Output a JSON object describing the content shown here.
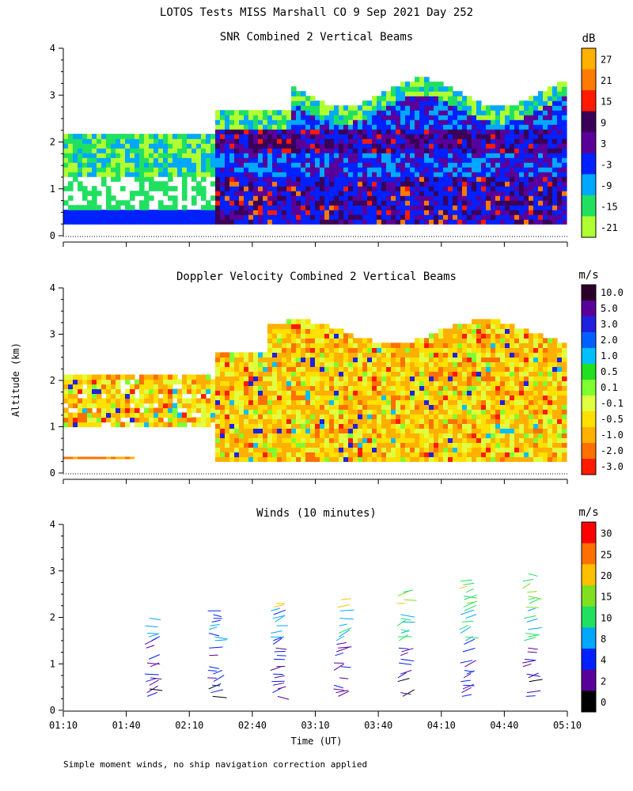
{
  "figure": {
    "title": "LOTOS Tests MISS Marshall CO   9 Sep 2021 Day 252",
    "xlabel": "Time (UT)",
    "ylabel": "Altitude (km)",
    "footnote": "Simple moment winds, no ship navigation correction applied",
    "x_ticks": [
      "01:10",
      "01:40",
      "02:10",
      "02:40",
      "03:10",
      "03:40",
      "04:10",
      "04:40",
      "05:10"
    ]
  },
  "chart_data": [
    {
      "type": "heatmap",
      "title": "SNR Combined 2 Vertical Beams",
      "ylim": [
        0,
        4
      ],
      "y_ticks": [
        "0",
        "1",
        "2",
        "3",
        "4"
      ],
      "colorbar_unit": "dB",
      "colorbar_labels": [
        "27",
        "21",
        "15",
        "9",
        "3",
        "-3",
        "-9",
        "-15",
        "-21"
      ],
      "colorbar_colors": [
        "#ffb000",
        "#ff7a00",
        "#ff1a00",
        "#3a0058",
        "#5a009a",
        "#0020ff",
        "#00a8ff",
        "#20e060",
        "#b0ff30"
      ],
      "colorbar_stops": [
        30,
        24,
        18,
        12,
        6,
        0,
        -6,
        -12,
        -18,
        -24
      ]
    },
    {
      "type": "heatmap",
      "title": "Doppler Velocity Combined 2 Vertical Beams",
      "ylim": [
        0,
        4
      ],
      "y_ticks": [
        "0",
        "1",
        "2",
        "3",
        "4"
      ],
      "colorbar_unit": "m/s",
      "colorbar_labels": [
        "10.0",
        "5.0",
        "3.0",
        "2.0",
        "1.0",
        "0.5",
        "0.1",
        "-0.1",
        "-0.5",
        "-1.0",
        "-2.0",
        "-3.0"
      ],
      "colorbar_colors": [
        "#2a002a",
        "#5a009a",
        "#2020e0",
        "#0060ff",
        "#00c0ff",
        "#20e020",
        "#80ff30",
        "#e0ff40",
        "#ffe000",
        "#ffb000",
        "#ff7000",
        "#ff1a00"
      ]
    },
    {
      "type": "scatter",
      "title": "Winds (10 minutes)",
      "ylim": [
        0,
        4
      ],
      "y_ticks": [
        "0",
        "1",
        "2",
        "3",
        "4"
      ],
      "colorbar_unit": "m/s",
      "colorbar_labels": [
        "30",
        "25",
        "20",
        "15",
        "10",
        "8",
        "4",
        "2",
        "0"
      ],
      "colorbar_colors": [
        "#ff0000",
        "#ff7000",
        "#ffc000",
        "#80e020",
        "#20e060",
        "#00a8ff",
        "#0020ff",
        "#5a009a",
        "#000000"
      ]
    }
  ]
}
